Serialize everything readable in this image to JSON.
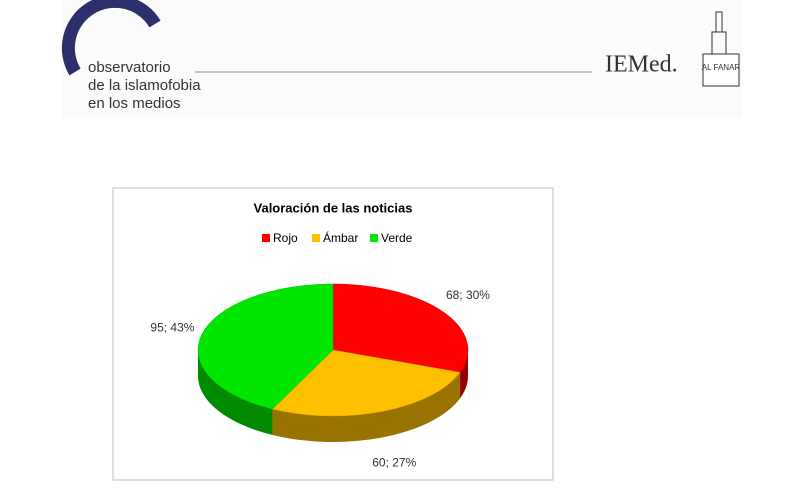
{
  "header": {
    "logo_lines": [
      "observatorio",
      "de la islamofobia",
      "en los medios"
    ],
    "partner_1": "IEMed.",
    "partner_2": "AL FANAR"
  },
  "chart_data": {
    "type": "pie",
    "title": "Valoración de las noticias",
    "categories": [
      "Rojo",
      "Ámbar",
      "Verde"
    ],
    "values": [
      68,
      60,
      95
    ],
    "value_labels": [
      "68; 30%",
      "60; 27%",
      "95; 43%"
    ],
    "colors": [
      "#ff0000",
      "#ffc000",
      "#00e600"
    ],
    "legend": "top"
  }
}
